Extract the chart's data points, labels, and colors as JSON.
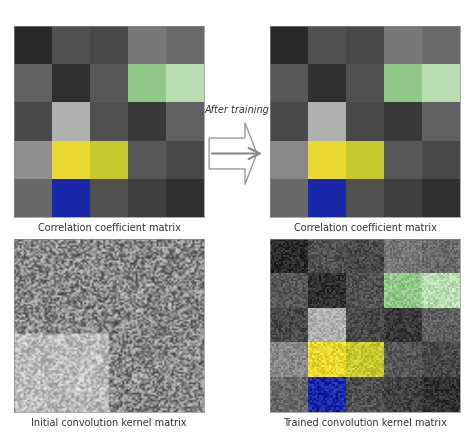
{
  "title_top_left": "Correlation coefficient matrix",
  "title_top_right": "Correlation coefficient matrix",
  "title_bottom_left": "Initial convolution kernel matrix",
  "title_bottom_right": "Trained convolution kernel matrix",
  "arrow_label": "After training",
  "corr_colors_left": [
    [
      "#282828",
      "#505050",
      "#484848",
      "#787878",
      "#6a6a6a"
    ],
    [
      "#606060",
      "#303030",
      "#585858",
      "#90c888",
      "#b8ddb0"
    ],
    [
      "#484848",
      "#b0b0b0",
      "#505050",
      "#383838",
      "#606060"
    ],
    [
      "#909090",
      "#e8d830",
      "#c8c830",
      "#585858",
      "#484848"
    ],
    [
      "#686868",
      "#1828a8",
      "#505050",
      "#404040",
      "#303030"
    ]
  ],
  "corr_colors_right": [
    [
      "#282828",
      "#505050",
      "#484848",
      "#787878",
      "#6a6a6a"
    ],
    [
      "#585858",
      "#303030",
      "#505050",
      "#90c888",
      "#b8ddb0"
    ],
    [
      "#484848",
      "#b0b0b0",
      "#484848",
      "#383838",
      "#606060"
    ],
    [
      "#888888",
      "#e8d830",
      "#c8c830",
      "#585858",
      "#484848"
    ],
    [
      "#686868",
      "#1828a8",
      "#505050",
      "#404040",
      "#303030"
    ]
  ],
  "trained_kernel_colors": [
    [
      "#282828",
      "#505050",
      "#484848",
      "#787878",
      "#6a6a6a"
    ],
    [
      "#585858",
      "#303030",
      "#505050",
      "#90c888",
      "#b8ddb0"
    ],
    [
      "#484848",
      "#b0b0b0",
      "#484848",
      "#383838",
      "#606060"
    ],
    [
      "#888888",
      "#e8d830",
      "#c8c830",
      "#585858",
      "#484848"
    ],
    [
      "#686868",
      "#1828a8",
      "#505050",
      "#404040",
      "#303030"
    ]
  ],
  "noise_seed": 42,
  "font_size": 7.0
}
